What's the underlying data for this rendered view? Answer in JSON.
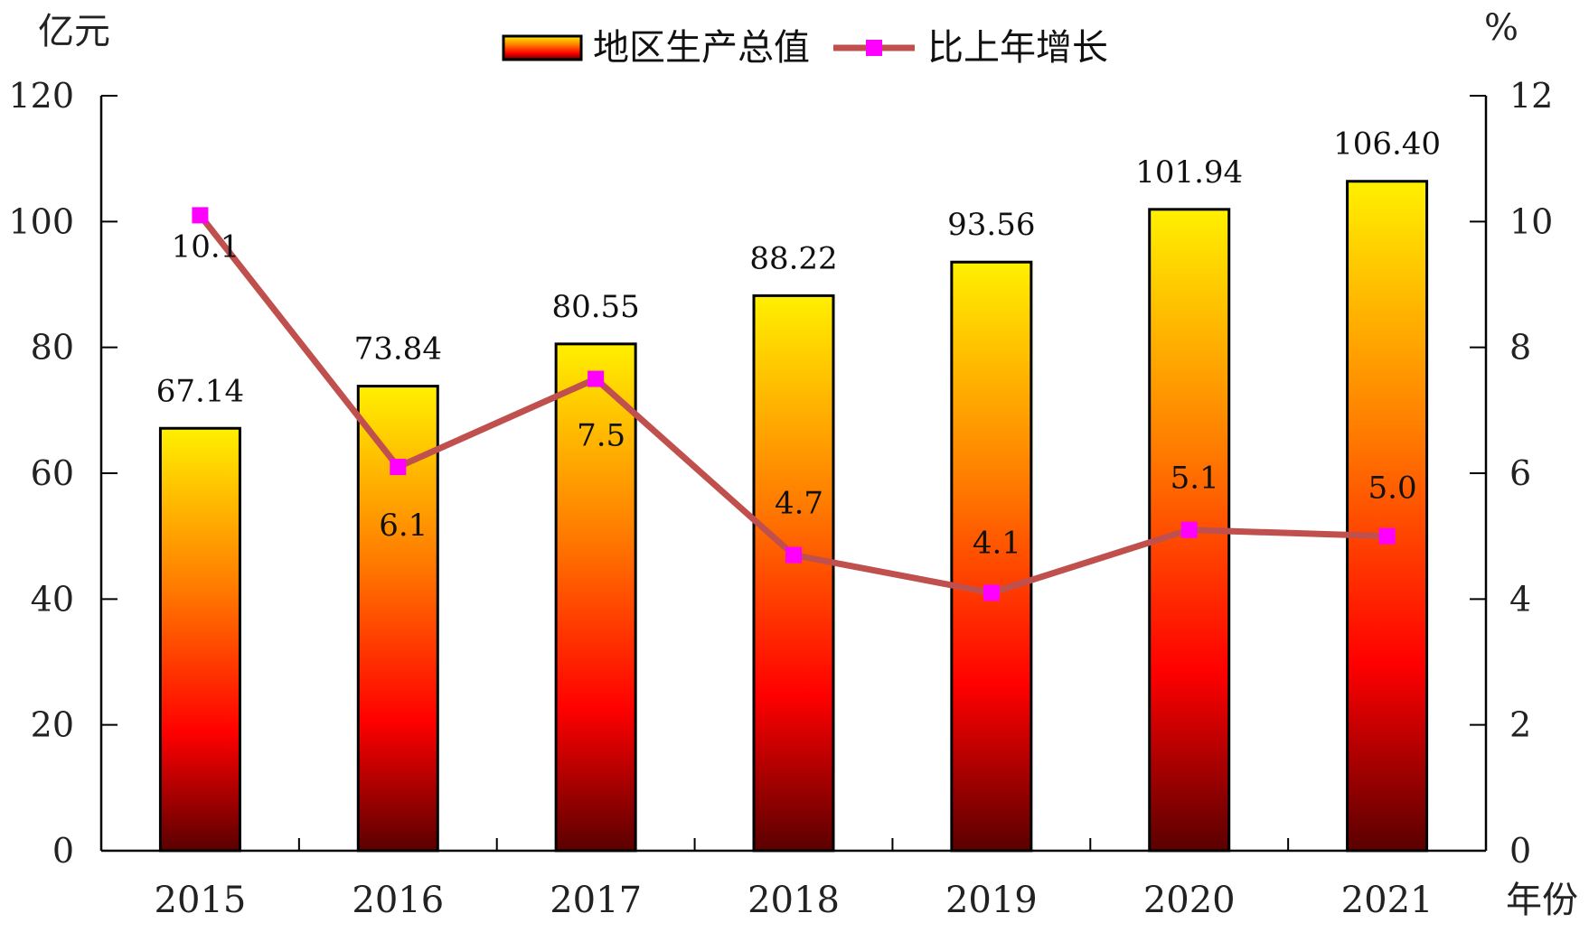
{
  "chart_data": {
    "type": "bar",
    "categories": [
      "2015",
      "2016",
      "2017",
      "2018",
      "2019",
      "2020",
      "2021"
    ],
    "series": [
      {
        "name": "地区生产总值",
        "type": "bar",
        "axis": "left",
        "values": [
          67.14,
          73.84,
          80.55,
          88.22,
          93.56,
          101.94,
          106.4
        ],
        "labels": [
          "67.14",
          "73.84",
          "80.55",
          "88.22",
          "93.56",
          "101.94",
          "106.40"
        ],
        "colors": [
          "#FFF000",
          "#FF7A00",
          "#FF0000",
          "#5A0000"
        ]
      },
      {
        "name": "比上年增长",
        "type": "line",
        "axis": "right",
        "values": [
          10.1,
          6.1,
          7.5,
          4.7,
          4.1,
          5.1,
          5.0
        ],
        "labels": [
          "10.1",
          "6.1",
          "7.5",
          "4.7",
          "4.1",
          "5.1",
          "5.0"
        ],
        "line_color": "#C0504D",
        "marker_color": "#FF00FF"
      }
    ],
    "left_axis": {
      "unit": "亿元",
      "ylim": [
        0,
        120
      ],
      "ticks": [
        "0",
        "20",
        "40",
        "60",
        "80",
        "100",
        "120"
      ]
    },
    "right_axis": {
      "unit": "%",
      "ylim": [
        0,
        12
      ],
      "ticks": [
        "0",
        "2",
        "4",
        "6",
        "8",
        "10",
        "12"
      ]
    },
    "xlabel": "年份",
    "legend": {
      "position": "top-center"
    },
    "grid": false
  }
}
